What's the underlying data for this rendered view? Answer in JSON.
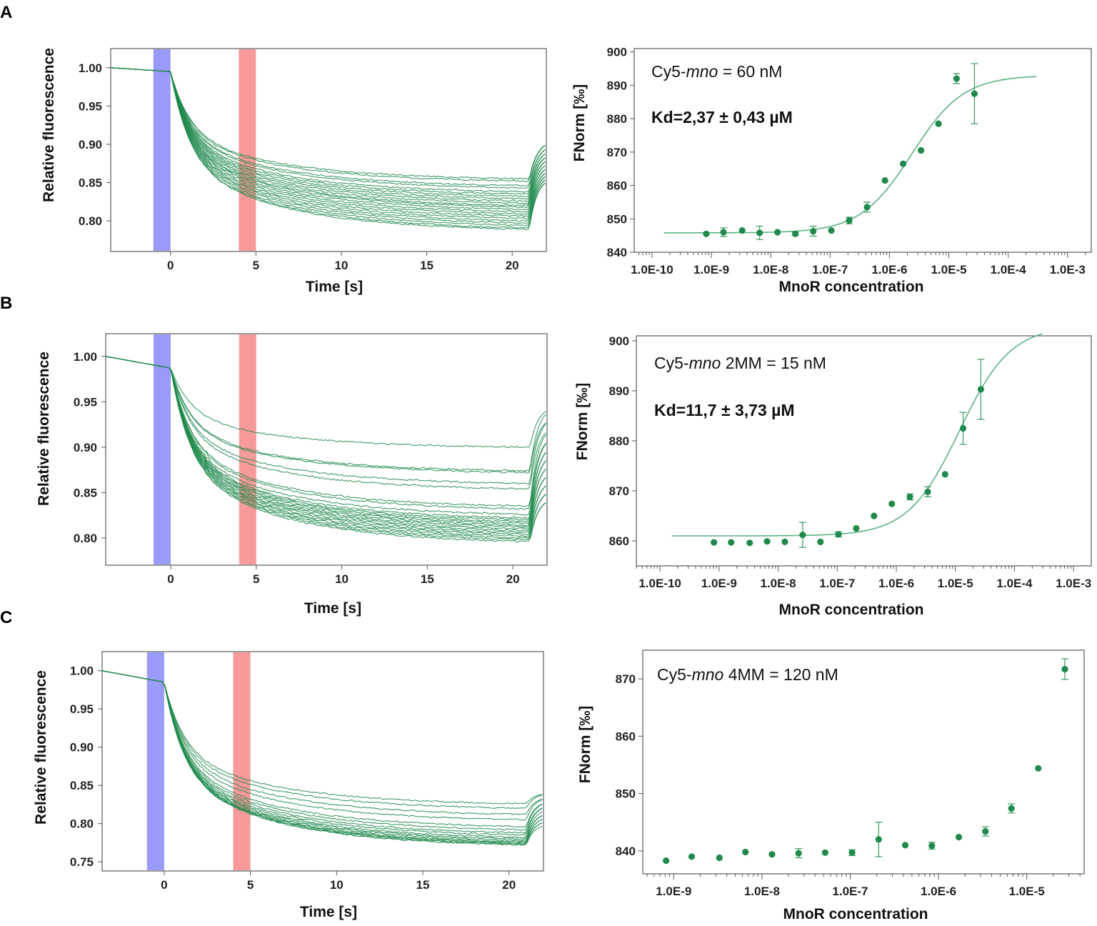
{
  "figure": {
    "panel_labels": [
      "A",
      "B",
      "C"
    ]
  },
  "colors": {
    "trace": "#1f8a4c",
    "fit": "#5bb381",
    "cold_band": "#9a9af8",
    "hot_band": "#f79a9a"
  },
  "chart_data": [
    {
      "id": "A-left",
      "type": "line",
      "xlabel": "Time [s]",
      "ylabel": "Relative fluorescence",
      "xlim": [
        -3.5,
        22
      ],
      "ylim": [
        0.76,
        1.025
      ],
      "xticks": [
        0,
        5,
        10,
        15,
        20
      ],
      "xtick_labels": [
        "0",
        "5",
        "10",
        "15",
        "20"
      ],
      "yticks": [
        0.8,
        0.85,
        0.9,
        0.95,
        1.0
      ],
      "ytick_labels": [
        "0.80",
        "0.85",
        "0.90",
        "0.95",
        "1.00"
      ],
      "cold_region": [
        -1,
        0
      ],
      "hot_region": [
        4,
        5
      ],
      "pre_end": 0.995,
      "end_values": [
        0.855,
        0.852,
        0.846,
        0.843,
        0.838,
        0.835,
        0.832,
        0.829,
        0.826,
        0.823,
        0.82,
        0.818,
        0.815,
        0.812,
        0.809,
        0.806,
        0.803,
        0.8,
        0.797,
        0.794,
        0.791,
        0.789
      ],
      "recovery_values": [
        0.905,
        0.9,
        0.895,
        0.89,
        0.885,
        0.88,
        0.875,
        0.87,
        0.866,
        0.862,
        0.858
      ]
    },
    {
      "id": "A-right",
      "type": "scatter",
      "xlabel": "MnoR concentration",
      "ylabel": "FNorm [‰]",
      "xscale": "log",
      "xlim_log10": [
        -10.3,
        -2.6
      ],
      "ylim": [
        840,
        901
      ],
      "xtick_exponents": [
        -10,
        -9,
        -8,
        -7,
        -6,
        -5,
        -4,
        -3
      ],
      "xtick_labels": [
        "1.0E-10",
        "1.0E-9",
        "1.0E-8",
        "1.0E-7",
        "1.0E-6",
        "1.0E-5",
        "1.0E-4",
        "1.0E-3"
      ],
      "yticks": [
        840,
        850,
        860,
        870,
        880,
        890,
        900
      ],
      "ytick_labels": [
        "840",
        "850",
        "860",
        "870",
        "880",
        "890",
        "900"
      ],
      "x": [
        8.2e-10,
        1.6e-09,
        3.3e-09,
        6.5e-09,
        1.3e-08,
        2.6e-08,
        5.2e-08,
        1.05e-07,
        2.1e-07,
        4.2e-07,
        8.4e-07,
        1.7e-06,
        3.4e-06,
        6.7e-06,
        1.35e-05,
        2.7e-05
      ],
      "y": [
        845.5,
        846,
        846.5,
        845.8,
        846,
        845.5,
        846.3,
        846.5,
        849.5,
        853.5,
        861.5,
        866.5,
        870.5,
        878.5,
        892,
        887.5
      ],
      "yerr": [
        0.3,
        1.3,
        0.3,
        2,
        0.3,
        0.5,
        1.5,
        0.3,
        1,
        1.5,
        0.3,
        0.3,
        0.3,
        0.3,
        1.5,
        9
      ],
      "fit": {
        "bottom": 845.8,
        "top": 893,
        "kd": 2.37e-06,
        "x_from": 1.6e-10,
        "x_to": 0.0003
      },
      "annotations": {
        "label_prefix": "Cy5-",
        "label_italic": "mno",
        "label_suffix": " = 60 nM",
        "kd_text": "Kd=2,37 ± 0,43 µM"
      }
    },
    {
      "id": "B-left",
      "type": "line",
      "xlabel": "Time [s]",
      "ylabel": "Relative fluorescence",
      "xlim": [
        -3.8,
        22
      ],
      "ylim": [
        0.77,
        1.025
      ],
      "xticks": [
        0,
        5,
        10,
        15,
        20
      ],
      "xtick_labels": [
        "0",
        "5",
        "10",
        "15",
        "20"
      ],
      "yticks": [
        0.8,
        0.85,
        0.9,
        0.95,
        1.0
      ],
      "ytick_labels": [
        "0.80",
        "0.85",
        "0.90",
        "0.95",
        "1.00"
      ],
      "cold_region": [
        -1,
        0
      ],
      "hot_region": [
        4,
        5
      ],
      "pre_end": 0.987,
      "end_values": [
        0.9,
        0.874,
        0.872,
        0.86,
        0.854,
        0.835,
        0.832,
        0.826,
        0.822,
        0.82,
        0.818,
        0.816,
        0.814,
        0.812,
        0.81,
        0.808,
        0.806,
        0.804,
        0.802,
        0.8,
        0.798,
        0.796
      ],
      "recovery_values": [
        0.945,
        0.935,
        0.925,
        0.915,
        0.905,
        0.895,
        0.885,
        0.875,
        0.865,
        0.855,
        0.845
      ]
    },
    {
      "id": "B-right",
      "type": "scatter",
      "xlabel": "MnoR concentration",
      "ylabel": "FNorm [‰]",
      "xscale": "log",
      "xlim_log10": [
        -10.4,
        -2.7
      ],
      "ylim": [
        855,
        901
      ],
      "xtick_exponents": [
        -10,
        -9,
        -8,
        -7,
        -6,
        -5,
        -4,
        -3
      ],
      "xtick_labels": [
        "1.0E-10",
        "1.0E-9",
        "1.0E-8",
        "1.0E-7",
        "1.0E-6",
        "1.0E-5",
        "1.0E-4",
        "1.0E-3"
      ],
      "yticks": [
        860,
        870,
        880,
        890,
        900
      ],
      "ytick_labels": [
        "860",
        "870",
        "880",
        "890",
        "900"
      ],
      "x": [
        8.2e-10,
        1.6e-09,
        3.3e-09,
        6.5e-09,
        1.3e-08,
        2.6e-08,
        5.2e-08,
        1.05e-07,
        2.1e-07,
        4.2e-07,
        8.4e-07,
        1.7e-06,
        3.4e-06,
        6.7e-06,
        1.35e-05,
        2.7e-05
      ],
      "y": [
        859.7,
        859.7,
        859.6,
        859.9,
        859.8,
        861.2,
        859.8,
        861.3,
        862.5,
        865,
        867.4,
        868.8,
        869.8,
        873.3,
        882.5,
        890.3
      ],
      "yerr": [
        0.3,
        0.3,
        0.3,
        0.3,
        0.3,
        2.5,
        0.3,
        0.5,
        0.4,
        0.4,
        0.4,
        0.6,
        1,
        0.3,
        3.2,
        6
      ],
      "fit": {
        "bottom": 861,
        "top": 903,
        "kd": 1.17e-05,
        "x_from": 1.6e-10,
        "x_to": 0.0003
      },
      "annotations": {
        "label_prefix": "Cy5-",
        "label_italic": "mno",
        "label_suffix": " 2MM  = 15 nM",
        "kd_text": "Kd=11,7 ± 3,73 µM"
      }
    },
    {
      "id": "C-left",
      "type": "line",
      "xlabel": "Time [s]",
      "ylabel": "Relative fluorescence",
      "xlim": [
        -3.6,
        22
      ],
      "ylim": [
        0.738,
        1.025
      ],
      "xticks": [
        0,
        5,
        10,
        15,
        20
      ],
      "xtick_labels": [
        "0",
        "5",
        "10",
        "15",
        "20"
      ],
      "yticks": [
        0.75,
        0.8,
        0.85,
        0.9,
        0.95,
        1.0
      ],
      "ytick_labels": [
        "0.75",
        "0.80",
        "0.85",
        "0.90",
        "0.95",
        "1.00"
      ],
      "cold_region": [
        -1,
        0
      ],
      "hot_region": [
        4,
        5
      ],
      "pre_end": 0.985,
      "end_values": [
        0.826,
        0.82,
        0.812,
        0.805,
        0.796,
        0.792,
        0.788,
        0.785,
        0.782,
        0.78,
        0.778,
        0.776,
        0.775,
        0.774,
        0.773,
        0.772
      ],
      "recovery_values": [
        0.84,
        0.835,
        0.83,
        0.825,
        0.82,
        0.815,
        0.81,
        0.805,
        0.8
      ]
    },
    {
      "id": "C-right",
      "type": "scatter",
      "xlabel": "MnoR concentration",
      "ylabel": "FNorm [‰]",
      "xscale": "log",
      "xlim_log10": [
        -9.35,
        -4.35
      ],
      "ylim": [
        836,
        875
      ],
      "xtick_exponents": [
        -9,
        -8,
        -7,
        -6,
        -5
      ],
      "xtick_labels": [
        "1.0E-9",
        "1.0E-8",
        "1.0E-7",
        "1.0E-6",
        "1.0E-5"
      ],
      "yticks": [
        840,
        850,
        860,
        870
      ],
      "ytick_labels": [
        "840",
        "850",
        "860",
        "870"
      ],
      "x": [
        8.2e-10,
        1.6e-09,
        3.3e-09,
        6.5e-09,
        1.3e-08,
        2.6e-08,
        5.2e-08,
        1.05e-07,
        2.1e-07,
        4.2e-07,
        8.4e-07,
        1.7e-06,
        3.4e-06,
        6.7e-06,
        1.35e-05,
        2.7e-05
      ],
      "y": [
        838.3,
        839,
        838.8,
        839.8,
        839.4,
        839.6,
        839.7,
        839.7,
        842,
        841,
        840.9,
        842.4,
        843.4,
        847.4,
        854.4,
        871.7
      ],
      "yerr": [
        0.3,
        0.3,
        0.3,
        0.3,
        0.3,
        0.8,
        0.3,
        0.5,
        3,
        0.3,
        0.6,
        0.3,
        0.8,
        0.8,
        0.3,
        1.8
      ],
      "annotations": {
        "label_prefix": "Cy5-",
        "label_italic": "mno",
        "label_suffix": " 4MM  = 120 nM"
      }
    }
  ]
}
